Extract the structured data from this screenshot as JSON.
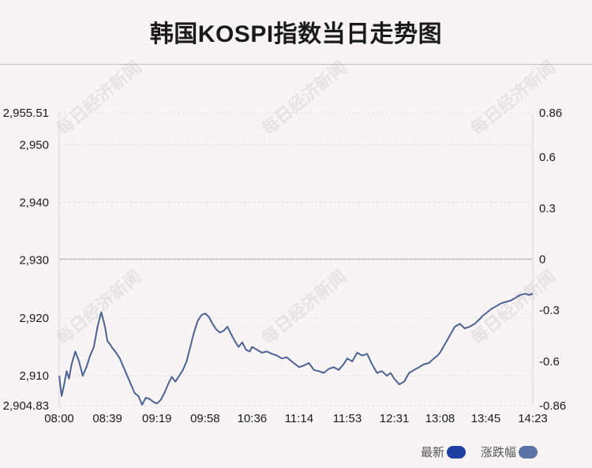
{
  "title": "韩国KOSPI指数当日走势图",
  "watermark": "每日经济新闻",
  "colors": {
    "line": "#4a6294",
    "legend_latest": "#1f3fa3",
    "legend_change": "#5a73a6"
  },
  "legend": [
    {
      "label": "最新",
      "color": "#1f3fa3"
    },
    {
      "label": "涨跌幅",
      "color": "#5a73a6"
    }
  ],
  "chart_data": {
    "type": "line",
    "title": "韩国KOSPI指数当日走势图",
    "xlabel": "",
    "ylabel": "",
    "x_ticks": [
      "08:00",
      "08:39",
      "09:19",
      "09:58",
      "10:36",
      "11:14",
      "11:53",
      "12:31",
      "13:08",
      "13:45",
      "14:23"
    ],
    "y_left_ticks": [
      "2,955.51",
      "2,950",
      "2,940",
      "2,930",
      "2,920",
      "2,910",
      "2,904.83"
    ],
    "y_left_values": [
      2955.51,
      2950,
      2940,
      2930,
      2920,
      2910,
      2904.83
    ],
    "y_right_ticks": [
      "0.86",
      "0.6",
      "0.3",
      "0",
      "-0.3",
      "-0.6",
      "-0.86"
    ],
    "y_right_values": [
      0.86,
      0.6,
      0.3,
      0,
      -0.3,
      -0.6,
      -0.86
    ],
    "ylim": [
      2904.83,
      2955.51
    ],
    "ylim_right": [
      -0.86,
      0.86
    ],
    "reference_value": 2930.2,
    "grid": true,
    "series": [
      {
        "name": "最新",
        "x": [
          "08:00",
          "08:02",
          "08:04",
          "08:06",
          "08:08",
          "08:10",
          "08:13",
          "08:16",
          "08:19",
          "08:22",
          "08:25",
          "08:28",
          "08:31",
          "08:34",
          "08:37",
          "08:39",
          "08:41",
          "08:43",
          "08:46",
          "08:49",
          "08:52",
          "08:55",
          "08:58",
          "09:01",
          "09:04",
          "09:07",
          "09:10",
          "09:13",
          "09:16",
          "09:19",
          "09:22",
          "09:25",
          "09:28",
          "09:31",
          "09:34",
          "09:37",
          "09:40",
          "09:43",
          "09:46",
          "09:49",
          "09:52",
          "09:55",
          "09:58",
          "10:01",
          "10:04",
          "10:07",
          "10:10",
          "10:13",
          "10:16",
          "10:19",
          "10:22",
          "10:25",
          "10:28",
          "10:31",
          "10:34",
          "10:36",
          "10:40",
          "10:44",
          "10:48",
          "10:52",
          "10:56",
          "11:00",
          "11:04",
          "11:08",
          "11:11",
          "11:14",
          "11:18",
          "11:22",
          "11:26",
          "11:30",
          "11:34",
          "11:38",
          "11:42",
          "11:46",
          "11:50",
          "11:53",
          "11:57",
          "12:01",
          "12:05",
          "12:09",
          "12:13",
          "12:17",
          "12:21",
          "12:25",
          "12:28",
          "12:31",
          "12:35",
          "12:39",
          "12:43",
          "12:47",
          "12:51",
          "12:55",
          "12:59",
          "13:03",
          "13:06",
          "13:08",
          "13:12",
          "13:16",
          "13:20",
          "13:24",
          "13:28",
          "13:32",
          "13:36",
          "13:40",
          "13:43",
          "13:45",
          "13:49",
          "13:53",
          "13:57",
          "14:01",
          "14:05",
          "14:09",
          "14:13",
          "14:17",
          "14:20",
          "14:23"
        ],
        "values": [
          2910.0,
          2906.5,
          2908.5,
          2910.8,
          2909.5,
          2912.0,
          2914.2,
          2912.5,
          2910.0,
          2911.5,
          2913.5,
          2915.0,
          2918.5,
          2921.0,
          2918.5,
          2916.0,
          2915.5,
          2914.8,
          2914.0,
          2913.0,
          2911.5,
          2910.0,
          2908.5,
          2907.0,
          2906.5,
          2905.0,
          2906.2,
          2906.0,
          2905.5,
          2905.2,
          2905.8,
          2907.0,
          2908.5,
          2909.8,
          2909.0,
          2910.0,
          2911.0,
          2912.5,
          2915.0,
          2917.5,
          2919.5,
          2920.5,
          2920.8,
          2920.2,
          2919.0,
          2918.0,
          2917.5,
          2917.8,
          2918.5,
          2917.2,
          2916.0,
          2915.0,
          2915.8,
          2914.5,
          2914.2,
          2915.0,
          2914.5,
          2914.0,
          2914.2,
          2913.8,
          2913.5,
          2913.0,
          2913.2,
          2912.5,
          2912.0,
          2911.5,
          2911.8,
          2912.2,
          2911.0,
          2910.8,
          2910.5,
          2911.2,
          2911.5,
          2911.0,
          2912.0,
          2913.0,
          2912.5,
          2914.0,
          2913.5,
          2913.8,
          2912.0,
          2910.5,
          2910.8,
          2910.0,
          2910.5,
          2909.5,
          2908.5,
          2909.0,
          2910.5,
          2911.0,
          2911.5,
          2912.0,
          2912.2,
          2913.0,
          2913.5,
          2914.0,
          2915.5,
          2917.0,
          2918.5,
          2919.0,
          2918.2,
          2918.5,
          2919.0,
          2919.8,
          2920.5,
          2920.8,
          2921.5,
          2922.0,
          2922.5,
          2922.8,
          2923.0,
          2923.5,
          2924.0,
          2924.2,
          2924.0,
          2924.2
        ]
      }
    ]
  }
}
